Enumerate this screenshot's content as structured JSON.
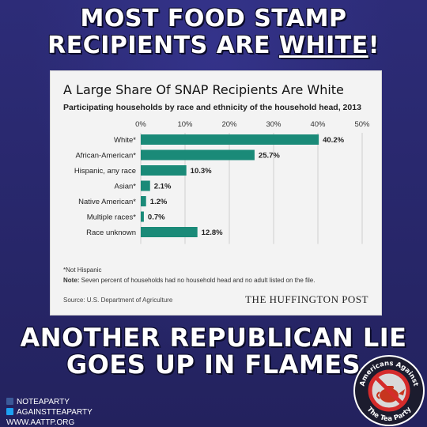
{
  "headline": {
    "line1": "MOST FOOD STAMP",
    "line2_prefix": "RECIPIENTS ARE ",
    "line2_underlined": "WHITE",
    "line2_suffix": "!",
    "bottom1": "ANOTHER REPUBLICAN LIE",
    "bottom2": "GOES UP IN FLAMES"
  },
  "card": {
    "title": "A Large Share Of SNAP Recipients Are White",
    "subtitle": "Participating households by race and ethnicity of the household head, 2013",
    "footnote": "*Not Hispanic",
    "note_label": "Note:",
    "note_text": " Seven percent of households had no household head and no adult listed on the file.",
    "source": "Source: U.S. Department of Agriculture",
    "brand": "THE HUFFINGTON POST"
  },
  "chart_data": {
    "type": "bar",
    "orientation": "horizontal",
    "categories": [
      "White*",
      "African-American*",
      "Hispanic, any race",
      "Asian*",
      "Native American*",
      "Multiple races*",
      "Race unknown"
    ],
    "values": [
      40.2,
      25.7,
      10.3,
      2.1,
      1.2,
      0.7,
      12.8
    ],
    "value_labels": [
      "40.2%",
      "25.7%",
      "10.3%",
      "2.1%",
      "1.2%",
      "0.7%",
      "12.8%"
    ],
    "ticks": [
      0,
      10,
      20,
      30,
      40,
      50
    ],
    "tick_labels": [
      "0%",
      "10%",
      "20%",
      "30%",
      "40%",
      "50%"
    ],
    "xlim": [
      0,
      50
    ],
    "bar_color": "#1a8a78",
    "grid": true
  },
  "social": {
    "facebook": "NOTEAPARTY",
    "twitter": "AGAINSTTEAPARTY",
    "website": "WWW.AATTP.ORG"
  },
  "logo": {
    "top_text": "Americans Against",
    "bottom_text": "The Tea Party"
  },
  "colors": {
    "background": "#2b2a70",
    "bar": "#1a8a78",
    "logo_red": "#d52b2b"
  }
}
